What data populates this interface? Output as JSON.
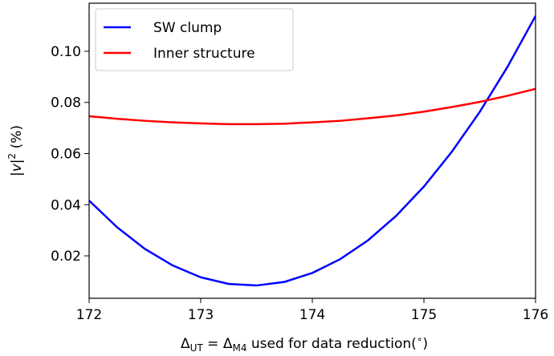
{
  "chart_data": {
    "type": "line",
    "x_label": [
      "Δ",
      "UT",
      " = Δ",
      "M4",
      " used for data reduction(",
      "∘",
      ")"
    ],
    "y_label": [
      "|",
      "v",
      "|",
      "2",
      " (%)"
    ],
    "x": [
      172,
      172.25,
      172.5,
      172.75,
      173,
      173.25,
      173.5,
      173.75,
      174,
      174.25,
      174.5,
      174.75,
      175,
      175.25,
      175.5,
      175.75,
      176
    ],
    "series": [
      {
        "name": "SW clump",
        "color": "#0000ff",
        "values": [
          0.0416,
          0.0312,
          0.0227,
          0.0162,
          0.0116,
          0.009,
          0.0084,
          0.0098,
          0.0133,
          0.0187,
          0.0261,
          0.0356,
          0.0471,
          0.0607,
          0.0763,
          0.094,
          0.1138
        ]
      },
      {
        "name": "Inner structure",
        "color": "#ff0000",
        "values": [
          0.0746,
          0.0736,
          0.0728,
          0.0722,
          0.0718,
          0.0715,
          0.0715,
          0.0717,
          0.0722,
          0.0728,
          0.0738,
          0.0749,
          0.0764,
          0.0782,
          0.0802,
          0.0826,
          0.0853
        ]
      }
    ],
    "xlim": [
      172,
      176
    ],
    "xticks": [
      172,
      173,
      174,
      175,
      176
    ],
    "ylim": [
      0.0034,
      0.1188
    ],
    "yticks": [
      0.02,
      0.04,
      0.06,
      0.08,
      {
        "value": 0.1,
        "label": "0.10"
      }
    ],
    "legend": "upper left"
  }
}
